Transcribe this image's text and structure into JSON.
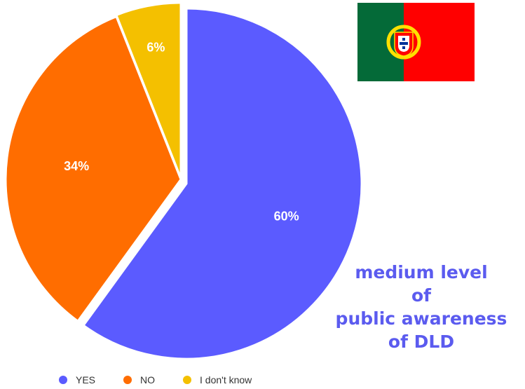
{
  "chart_data": {
    "type": "pie",
    "categories": [
      "YES",
      "NO",
      "I don't know"
    ],
    "values": [
      60,
      34,
      6
    ],
    "value_labels": [
      "60%",
      "34%",
      "6%"
    ],
    "colors": [
      "#5b5bff",
      "#ff6d00",
      "#f4c000"
    ],
    "title": "",
    "legend_position": "bottom",
    "start_angle": "12 o'clock",
    "direction": "clockwise"
  },
  "caption": {
    "lines": [
      "medium level",
      "of",
      "public awareness",
      "of DLD"
    ]
  },
  "flag": {
    "country": "Portugal",
    "colors": {
      "green": "#046a38",
      "red": "#ff0000",
      "yellow": "#ffe000"
    }
  },
  "legend": {
    "items": [
      {
        "label": "YES",
        "color": "#5b5bff"
      },
      {
        "label": "NO",
        "color": "#ff6d00"
      },
      {
        "label": "I don't know",
        "color": "#f4c000"
      }
    ]
  }
}
